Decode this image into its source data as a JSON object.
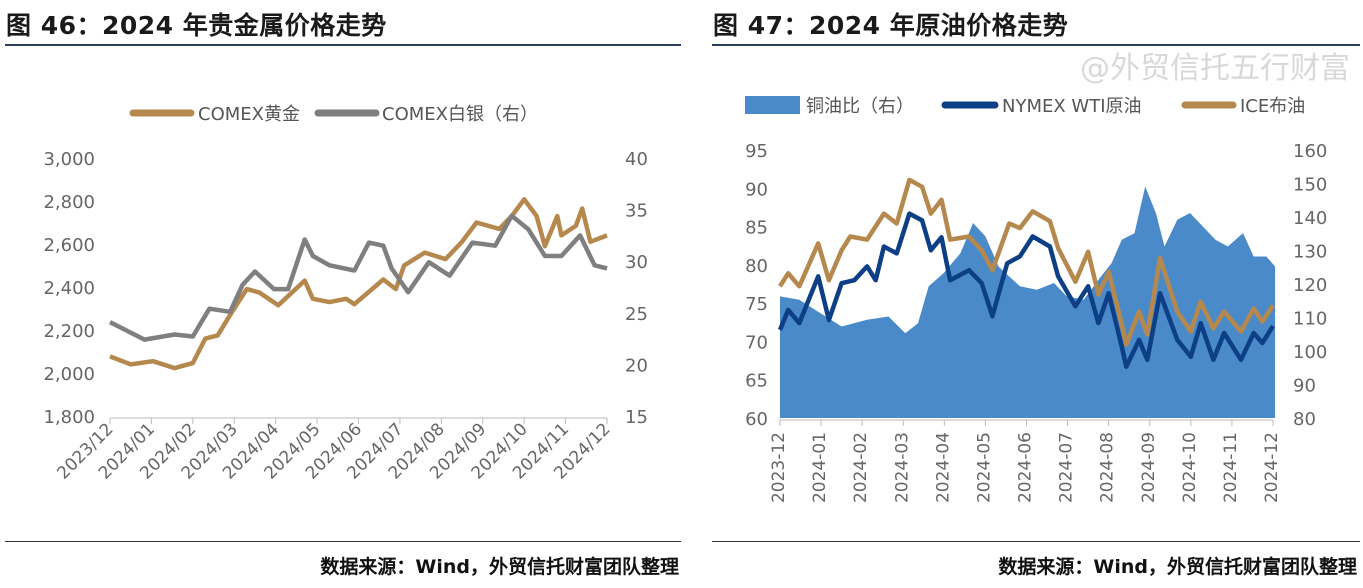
{
  "left": {
    "title": "图 46：2024 年贵金属价格走势",
    "source": "数据来源：Wind，外贸信托财富团队整理"
  },
  "right": {
    "title": "图 47：2024 年原油价格走势",
    "source": "数据来源：Wind，外贸信托财富团队整理"
  },
  "watermark": "@外贸信托五行财富",
  "chart_data": [
    {
      "type": "line",
      "title": "2024 年贵金属价格走势",
      "x_unit": "months since 2023/12",
      "x_ticks": [
        "2023/12",
        "2024/01",
        "2024/02",
        "2024/03",
        "2024/04",
        "2024/05",
        "2024/06",
        "2024/07",
        "2024/08",
        "2024/09",
        "2024/10",
        "2024/11",
        "2024/12"
      ],
      "ylim_left": [
        1800,
        3000
      ],
      "yticks_left": [
        "1,800",
        "2,000",
        "2,200",
        "2,400",
        "2,600",
        "2,800",
        "3,000"
      ],
      "ylim_right": [
        15,
        40
      ],
      "yticks_right": [
        "15",
        "20",
        "25",
        "30",
        "35",
        "40"
      ],
      "legend_position": "top-center",
      "series": [
        {
          "name": "COMEX黄金",
          "axis": "left",
          "color": "#b5884e",
          "x": [
            0,
            0.5,
            1.04,
            1.56,
            2.0,
            2.3,
            2.6,
            2.9,
            3.3,
            3.6,
            4.06,
            4.7,
            4.9,
            5.3,
            5.7,
            5.9,
            6.6,
            6.9,
            7.1,
            7.6,
            8.1,
            8.5,
            8.85,
            9.4,
            9.7,
            10.0,
            10.3,
            10.5,
            10.8,
            10.9,
            11.25,
            11.4,
            11.6,
            12
          ],
          "y": [
            2077,
            2040,
            2055,
            2023,
            2046,
            2160,
            2175,
            2270,
            2390,
            2375,
            2315,
            2430,
            2345,
            2330,
            2345,
            2320,
            2435,
            2390,
            2500,
            2560,
            2530,
            2610,
            2700,
            2670,
            2730,
            2808,
            2730,
            2590,
            2730,
            2640,
            2685,
            2765,
            2610,
            2640
          ]
        },
        {
          "name": "COMEX白银（右）",
          "axis": "right",
          "color": "#7f7f7f",
          "x": [
            0,
            0.83,
            1.56,
            2.0,
            2.4,
            2.9,
            3.2,
            3.5,
            3.96,
            4.3,
            4.7,
            4.9,
            5.3,
            5.9,
            6.25,
            6.6,
            6.8,
            7.2,
            7.7,
            8.2,
            8.75,
            9.3,
            9.7,
            10.1,
            10.5,
            10.9,
            11.35,
            11.7,
            12
          ],
          "y": [
            24.1,
            22.4,
            22.9,
            22.7,
            25.4,
            25.1,
            27.7,
            29.0,
            27.3,
            27.3,
            32.1,
            30.5,
            29.6,
            29.1,
            31.8,
            31.5,
            29.3,
            27.0,
            29.9,
            28.6,
            31.8,
            31.5,
            34.4,
            33.1,
            30.5,
            30.5,
            32.5,
            29.6,
            29.3
          ]
        }
      ]
    },
    {
      "type": "line",
      "title": "2024 年原油价格走势",
      "x_unit": "months since 2023-12",
      "x_ticks": [
        "2023-12",
        "2024-01",
        "2024-02",
        "2024-03",
        "2024-04",
        "2024-05",
        "2024-06",
        "2024-07",
        "2024-08",
        "2024-09",
        "2024-10",
        "2024-11",
        "2024-12"
      ],
      "ylim_left": [
        60,
        95
      ],
      "yticks_left": [
        "60",
        "65",
        "70",
        "75",
        "80",
        "85",
        "90",
        "95"
      ],
      "ylim_right": [
        80,
        160
      ],
      "yticks_right": [
        "80",
        "90",
        "100",
        "110",
        "120",
        "130",
        "140",
        "150",
        "160"
      ],
      "legend_position": "top-center",
      "series": [
        {
          "name": "铜油比（右）",
          "axis": "right",
          "kind": "area",
          "color": "#4a8ac9",
          "x": [
            0,
            0.47,
            0.98,
            1.5,
            2.12,
            2.64,
            3.05,
            3.36,
            3.62,
            3.98,
            4.39,
            4.7,
            5.0,
            5.32,
            5.84,
            6.25,
            6.67,
            6.98,
            7.39,
            7.81,
            8.07,
            8.32,
            8.63,
            8.89,
            9.15,
            9.36,
            9.67,
            9.98,
            10.29,
            10.6,
            10.9,
            11.27,
            11.53,
            11.84,
            12.05
          ],
          "y": [
            116.3,
            115.3,
            111.3,
            107.3,
            109.3,
            110.3,
            105.3,
            108.3,
            119.3,
            123.2,
            129.2,
            138.2,
            134.2,
            125.2,
            119.3,
            118.3,
            120.3,
            116.3,
            115.3,
            122.2,
            126.2,
            133.2,
            135.2,
            149.1,
            141.2,
            131.2,
            139.2,
            141.2,
            137.2,
            133.2,
            131.2,
            135.2,
            128.2,
            128.2,
            125.2
          ]
        },
        {
          "name": "NYMEX WTI原油",
          "axis": "left",
          "kind": "line",
          "color": "#0d3f86",
          "x": [
            0,
            0.2,
            0.47,
            0.93,
            1.19,
            1.5,
            1.81,
            2.12,
            2.33,
            2.53,
            2.84,
            3.15,
            3.46,
            3.67,
            3.93,
            4.14,
            4.6,
            4.91,
            5.17,
            5.53,
            5.84,
            6.15,
            6.57,
            6.77,
            7.19,
            7.5,
            7.75,
            8.0,
            8.32,
            8.43,
            8.74,
            8.94,
            9.25,
            9.67,
            10.0,
            10.24,
            10.55,
            10.81,
            11.22,
            11.53,
            11.74,
            12.0
          ],
          "y": [
            71.5,
            74.1,
            72.4,
            78.5,
            72.8,
            77.6,
            78.0,
            79.8,
            78.0,
            82.4,
            81.5,
            86.7,
            85.8,
            81.9,
            83.6,
            78.0,
            79.3,
            77.6,
            73.3,
            80.2,
            81.1,
            83.7,
            82.4,
            78.5,
            74.6,
            77.2,
            72.4,
            76.3,
            69.3,
            66.7,
            70.2,
            67.6,
            76.3,
            70.2,
            68.0,
            72.4,
            67.6,
            71.1,
            67.6,
            71.1,
            69.8,
            72.0
          ]
        },
        {
          "name": "ICE布油",
          "axis": "left",
          "kind": "line",
          "color": "#b5884e",
          "x": [
            0,
            0.2,
            0.47,
            0.93,
            1.19,
            1.5,
            1.71,
            2.12,
            2.53,
            2.84,
            3.15,
            3.46,
            3.67,
            3.93,
            4.14,
            4.6,
            4.91,
            5.17,
            5.58,
            5.84,
            6.15,
            6.57,
            6.77,
            7.19,
            7.5,
            7.75,
            8.0,
            8.32,
            8.43,
            8.74,
            8.94,
            9.25,
            9.67,
            10.0,
            10.24,
            10.55,
            10.81,
            11.22,
            11.53,
            11.74,
            12.0
          ],
          "y": [
            77.2,
            78.9,
            77.2,
            82.8,
            78.0,
            81.9,
            83.7,
            83.3,
            86.7,
            85.4,
            91.1,
            90.2,
            86.7,
            88.5,
            83.3,
            83.7,
            81.9,
            79.3,
            85.4,
            84.8,
            87.0,
            85.7,
            82.2,
            77.8,
            81.7,
            76.1,
            79.1,
            72.2,
            69.6,
            73.9,
            70.9,
            80.9,
            73.9,
            71.3,
            75.2,
            71.7,
            73.9,
            71.3,
            74.3,
            72.6,
            74.7
          ]
        }
      ]
    }
  ]
}
